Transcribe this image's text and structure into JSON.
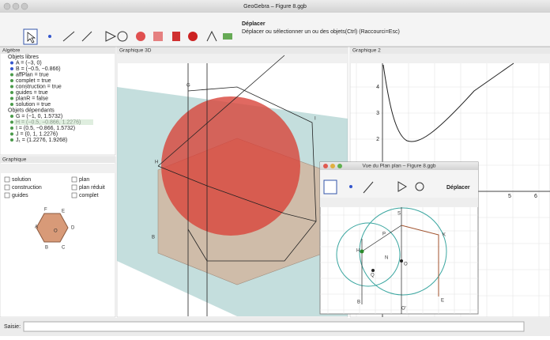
{
  "window": {
    "title": "GeoGebra – Figure 8.ggb"
  },
  "toolbar": {
    "tool_name": "Déplacer",
    "tool_help": "Déplacer ou sélectionner un ou des objets(Ctrl) (Raccourci=Esc)"
  },
  "algebra": {
    "title": "Algèbre",
    "free_header": "Objets libres",
    "free": [
      "A = (−3, 0)",
      "B = (−0.5, −0.866)",
      "affPlan = true",
      "complet = true",
      "construction = true",
      "guides = true",
      "planR = false",
      "solution = true"
    ],
    "dependent_header": "Objets dépendants",
    "dependent": [
      "G = (−1, 0, 1.5732)",
      "H = (−0.5, −0.866, 1.2276)",
      "I = (0.5, −0.866, 1.5732)",
      "J = (0, 1, 1.2276)",
      "J₁ = (1.2276, 1.9268)"
    ]
  },
  "graphics": {
    "title": "Graphique",
    "checkboxes": [
      "solution",
      "plan",
      "construction",
      "plan réduit",
      "guides",
      "complet"
    ],
    "points": [
      "A",
      "B",
      "C",
      "D",
      "E",
      "F",
      "O"
    ]
  },
  "graphics3d": {
    "title": "Graphique 3D",
    "points": [
      "G",
      "H",
      "I",
      "B"
    ]
  },
  "graphics2": {
    "title": "Graphique 2",
    "y_labels": [
      4,
      3,
      2,
      1
    ],
    "x_labels": [
      5,
      6
    ]
  },
  "plane_window": {
    "title": "Vue du Plan plan – Figure 8.ggb",
    "tool_name": "Déplacer",
    "points": [
      "S",
      "P",
      "K",
      "H",
      "N",
      "O",
      "Q",
      "B",
      "E",
      "O'"
    ]
  },
  "input_bar": {
    "label": "Saisie:"
  }
}
